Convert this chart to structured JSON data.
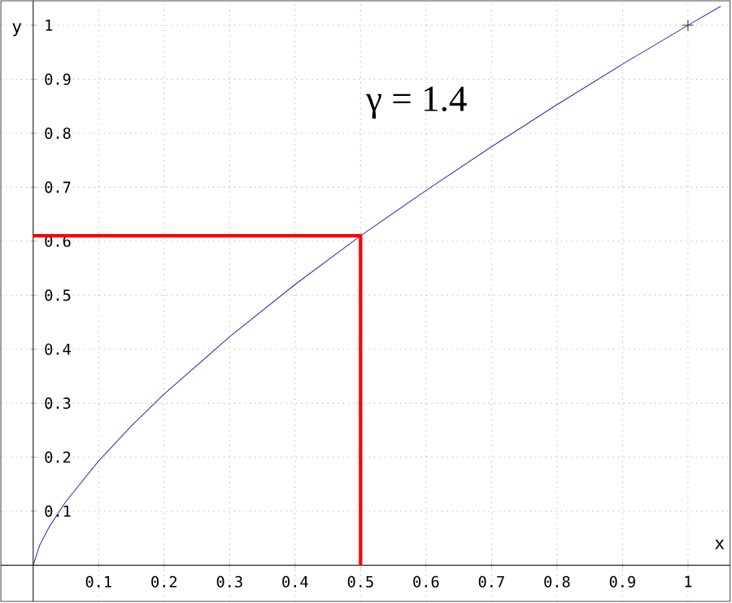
{
  "chart_data": {
    "type": "line",
    "xlabel": "x",
    "ylabel": "y",
    "annotations": [
      "γ = 1.4"
    ],
    "xlim": [
      -0.05,
      1.065
    ],
    "ylim": [
      -0.068,
      1.046
    ],
    "xticks": [
      0.1,
      0.2,
      0.3,
      0.4,
      0.5,
      0.6,
      0.7,
      0.8,
      0.9,
      1
    ],
    "yticks": [
      0.1,
      0.2,
      0.3,
      0.4,
      0.5,
      0.6,
      0.7,
      0.8,
      0.9,
      1
    ],
    "grid": true,
    "series": [
      {
        "color": "#3333aa",
        "marker": "none",
        "x": [
          0,
          0.01,
          0.025,
          0.05,
          0.1,
          0.15,
          0.2,
          0.3,
          0.4,
          0.5,
          0.6,
          0.7,
          0.8,
          0.9,
          1,
          1.05
        ],
        "values": [
          0,
          0.037,
          0.072,
          0.118,
          0.193,
          0.258,
          0.317,
          0.423,
          0.52,
          0.61,
          0.694,
          0.775,
          0.853,
          0.928,
          1,
          1.035
        ]
      },
      {
        "color": "#ff0000",
        "marker": "none",
        "x": [
          0,
          0.5,
          0.5
        ],
        "values": [
          0.61,
          0.61,
          0
        ]
      },
      {
        "type": "scatter",
        "color": "#333333",
        "marker": "cross",
        "x": [
          1
        ],
        "values": [
          1
        ]
      }
    ]
  }
}
